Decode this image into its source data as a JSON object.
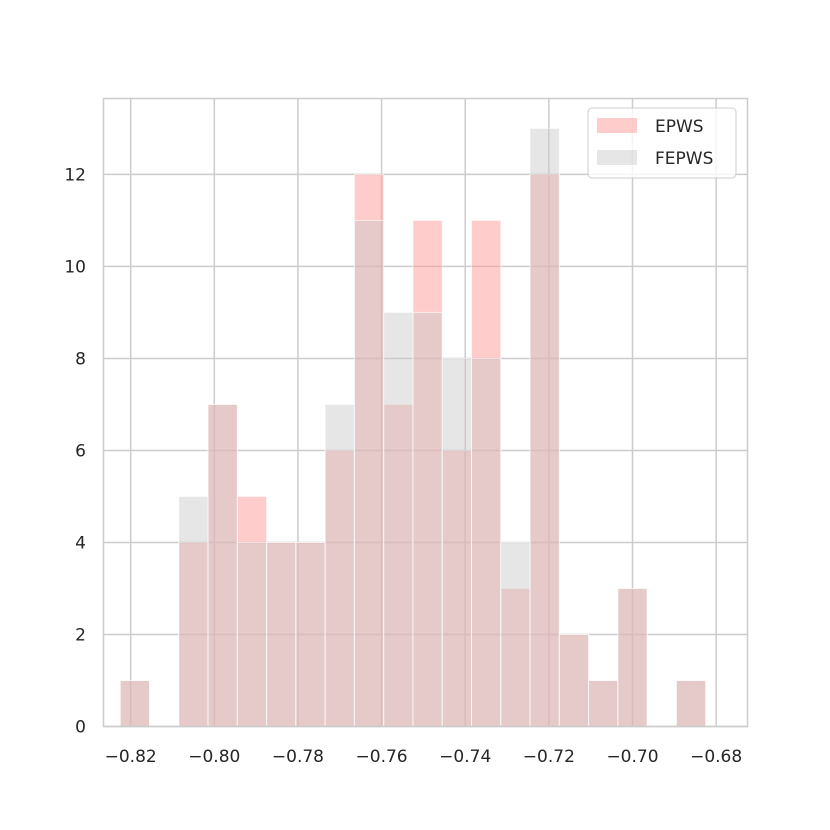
{
  "chart_data": {
    "type": "bar",
    "title": "",
    "xlabel": "",
    "ylabel": "",
    "xlim": [
      -0.8265,
      -0.6725
    ],
    "ylim": [
      0,
      13.65
    ],
    "xticks": [
      -0.82,
      -0.8,
      -0.78,
      -0.76,
      -0.74,
      -0.72,
      -0.7,
      -0.68
    ],
    "xtick_labels": [
      "−0.82",
      "−0.80",
      "−0.78",
      "−0.76",
      "−0.74",
      "−0.72",
      "−0.70",
      "−0.68"
    ],
    "yticks": [
      0,
      2,
      4,
      6,
      8,
      10,
      12
    ],
    "ytick_labels": [
      "0",
      "2",
      "4",
      "6",
      "8",
      "10",
      "12"
    ],
    "grid": true,
    "legend_position": "top-right",
    "bin_edges": [
      -0.8225,
      -0.8155,
      -0.8085,
      -0.8015,
      -0.7945,
      -0.7875,
      -0.7805,
      -0.7735,
      -0.7665,
      -0.7595,
      -0.7525,
      -0.7455,
      -0.7385,
      -0.7315,
      -0.7245,
      -0.7175,
      -0.7105,
      -0.7035,
      -0.6965,
      -0.6895,
      -0.6825,
      -0.6755
    ],
    "series": [
      {
        "name": "EPWS",
        "color": "#ff9999",
        "values": [
          1,
          0,
          4,
          7,
          5,
          4,
          4,
          6,
          12,
          7,
          11,
          6,
          11,
          3,
          12,
          2,
          1,
          3,
          0,
          1,
          0
        ]
      },
      {
        "name": "FEPWS",
        "color": "#c8c8c8",
        "values": [
          1,
          0,
          5,
          7,
          4,
          4,
          4,
          7,
          11,
          9,
          9,
          8,
          8,
          4,
          13,
          2,
          1,
          3,
          0,
          1,
          0
        ]
      }
    ]
  }
}
